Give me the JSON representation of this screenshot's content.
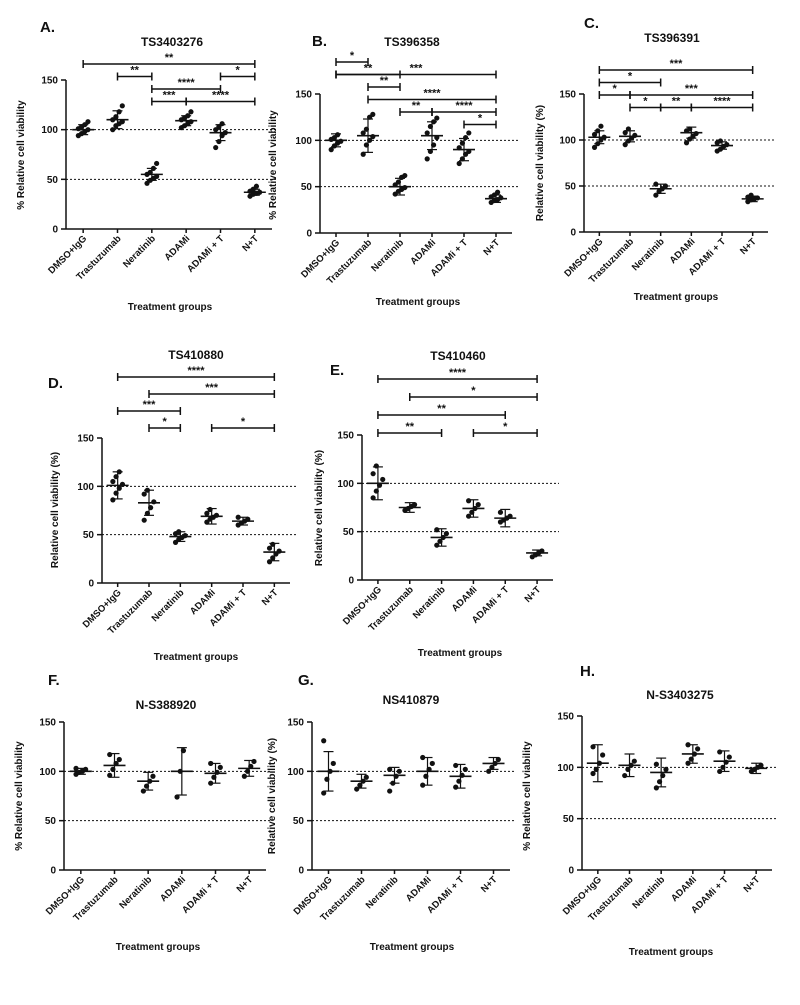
{
  "chart_data": [
    {
      "type": "scatter",
      "panel": "A.",
      "title": "TS3403276",
      "xlabel": "Treatment groups",
      "ylabel": "% Relative cell viability",
      "ylim": [
        0,
        150
      ],
      "yticks": [
        0,
        50,
        100,
        150
      ],
      "reference_lines": [
        50,
        100
      ],
      "categories": [
        "DMSO+IgG",
        "Trastuzumab",
        "Neratinib",
        "ADAMi",
        "ADAMi + T",
        "N+T"
      ],
      "points": [
        [
          94,
          96,
          98,
          100,
          101,
          103,
          105,
          108
        ],
        [
          100,
          104,
          106,
          108,
          110,
          113,
          118,
          124
        ],
        [
          46,
          49,
          51,
          53,
          55,
          57,
          61,
          66
        ],
        [
          102,
          104,
          106,
          108,
          110,
          112,
          114,
          118
        ],
        [
          82,
          88,
          94,
          97,
          100,
          103,
          106
        ],
        [
          33,
          35,
          36,
          37,
          38,
          40,
          43
        ]
      ],
      "centers": [
        100,
        110,
        55,
        109,
        97,
        37
      ],
      "sd": [
        5,
        9,
        6,
        5,
        8,
        3
      ],
      "significance": [
        {
          "from": 0,
          "to": 5,
          "label": "**",
          "level": 0
        },
        {
          "from": 1,
          "to": 2,
          "label": "**",
          "level": 1
        },
        {
          "from": 4,
          "to": 5,
          "label": "*",
          "level": 1
        },
        {
          "from": 2,
          "to": 4,
          "label": "****",
          "level": 2
        },
        {
          "from": 2,
          "to": 3,
          "label": "***",
          "level": 3
        },
        {
          "from": 3,
          "to": 5,
          "label": "****",
          "level": 3
        }
      ]
    },
    {
      "type": "scatter",
      "panel": "B.",
      "title": "TS396358",
      "xlabel": "Treatment groups",
      "ylabel": "% Relative cell viability",
      "ylim": [
        0,
        150
      ],
      "yticks": [
        0,
        50,
        100,
        150
      ],
      "reference_lines": [
        50,
        100
      ],
      "categories": [
        "DMSO+IgG",
        "Trastuzumab",
        "Neratinib",
        "ADAMi",
        "ADAMi + T",
        "N+T"
      ],
      "points": [
        [
          90,
          94,
          97,
          99,
          101,
          103,
          106
        ],
        [
          85,
          95,
          100,
          104,
          108,
          112,
          125,
          128
        ],
        [
          42,
          45,
          47,
          49,
          52,
          55,
          60,
          62
        ],
        [
          80,
          88,
          95,
          103,
          108,
          115,
          120,
          124
        ],
        [
          75,
          80,
          85,
          88,
          92,
          97,
          103,
          108
        ],
        [
          33,
          35,
          36,
          38,
          39,
          41,
          44
        ]
      ],
      "centers": [
        100,
        105,
        50,
        105,
        90,
        37
      ],
      "sd": [
        7,
        18,
        9,
        15,
        12,
        4
      ],
      "significance": [
        {
          "from": 0,
          "to": 1,
          "label": "*",
          "level": 0
        },
        {
          "from": 0,
          "to": 2,
          "label": "**",
          "level": 1
        },
        {
          "from": 0,
          "to": 5,
          "label": "***",
          "level": 1
        },
        {
          "from": 1,
          "to": 2,
          "label": "**",
          "level": 2
        },
        {
          "from": 1,
          "to": 5,
          "label": "****",
          "level": 3
        },
        {
          "from": 2,
          "to": 3,
          "label": "**",
          "level": 4
        },
        {
          "from": 3,
          "to": 5,
          "label": "****",
          "level": 4
        },
        {
          "from": 4,
          "to": 5,
          "label": "*",
          "level": 5
        }
      ]
    },
    {
      "type": "scatter",
      "panel": "C.",
      "title": "TS396391",
      "xlabel": "Treatment groups",
      "ylabel": "Relative cell viability (%)",
      "ylim": [
        0,
        150
      ],
      "yticks": [
        0,
        50,
        100,
        150
      ],
      "reference_lines": [
        50,
        100
      ],
      "categories": [
        "DMSO+IgG",
        "Trastuzumab",
        "Neratinib",
        "ADAMi",
        "ADAMi + T",
        "N+T"
      ],
      "points": [
        [
          92,
          96,
          100,
          103,
          106,
          110,
          115
        ],
        [
          95,
          99,
          102,
          105,
          108,
          112
        ],
        [
          40,
          44,
          47,
          50,
          52
        ],
        [
          97,
          101,
          104,
          107,
          110,
          112
        ],
        [
          88,
          90,
          93,
          95,
          97,
          99
        ],
        [
          33,
          35,
          36,
          37,
          38,
          40
        ]
      ],
      "centers": [
        103,
        104,
        47,
        108,
        94,
        36
      ],
      "sd": [
        7,
        6,
        5,
        6,
        4,
        3
      ],
      "significance": [
        {
          "from": 0,
          "to": 5,
          "label": "***",
          "level": 0
        },
        {
          "from": 0,
          "to": 2,
          "label": "*",
          "level": 1
        },
        {
          "from": 0,
          "to": 1,
          "label": "*",
          "level": 2
        },
        {
          "from": 1,
          "to": 5,
          "label": "***",
          "level": 2
        },
        {
          "from": 1,
          "to": 2,
          "label": "*",
          "level": 3
        },
        {
          "from": 2,
          "to": 3,
          "label": "**",
          "level": 3
        },
        {
          "from": 3,
          "to": 5,
          "label": "****",
          "level": 3
        }
      ]
    },
    {
      "type": "scatter",
      "panel": "D.",
      "title": "TS410880",
      "xlabel": "Treatment groups",
      "ylabel": "Relative cell viability (%)",
      "ylim": [
        0,
        150
      ],
      "yticks": [
        0,
        50,
        100,
        150
      ],
      "reference_lines": [
        50,
        100
      ],
      "categories": [
        "DMSO+IgG",
        "Trastuzumab",
        "Neratinib",
        "ADAMi",
        "ADAMi + T",
        "N+T"
      ],
      "points": [
        [
          86,
          93,
          98,
          102,
          105,
          110,
          115
        ],
        [
          65,
          72,
          78,
          84,
          92,
          96
        ],
        [
          42,
          45,
          47,
          49,
          51,
          53
        ],
        [
          63,
          66,
          68,
          70,
          72,
          76
        ],
        [
          60,
          62,
          64,
          66,
          68
        ],
        [
          22,
          26,
          30,
          33,
          36,
          40
        ]
      ],
      "centers": [
        101,
        83,
        48,
        69,
        64,
        32
      ],
      "sd": [
        14,
        13,
        5,
        8,
        4,
        9
      ],
      "significance": [
        {
          "from": 0,
          "to": 5,
          "label": "****",
          "level": 0
        },
        {
          "from": 1,
          "to": 5,
          "label": "***",
          "level": 1
        },
        {
          "from": 0,
          "to": 2,
          "label": "***",
          "level": 2
        },
        {
          "from": 1,
          "to": 2,
          "label": "*",
          "level": 3
        },
        {
          "from": 3,
          "to": 5,
          "label": "*",
          "level": 3
        }
      ]
    },
    {
      "type": "scatter",
      "panel": "E.",
      "title": "TS410460",
      "xlabel": "Treatment groups",
      "ylabel": "Relative cell viability (%)",
      "ylim": [
        0,
        150
      ],
      "yticks": [
        0,
        50,
        100,
        150
      ],
      "reference_lines": [
        50,
        100
      ],
      "categories": [
        "DMSO+IgG",
        "Trastuzumab",
        "Neratinib",
        "ADAMi",
        "ADAMi + T",
        "N+T"
      ],
      "points": [
        [
          85,
          92,
          98,
          104,
          110,
          118
        ],
        [
          72,
          74,
          76,
          78
        ],
        [
          36,
          40,
          44,
          48,
          52
        ],
        [
          66,
          70,
          74,
          78,
          82
        ],
        [
          60,
          62,
          64,
          66,
          70
        ],
        [
          24,
          26,
          28,
          30
        ]
      ],
      "centers": [
        100,
        75,
        44,
        74,
        64,
        28
      ],
      "sd": [
        17,
        5,
        9,
        9,
        9,
        3
      ],
      "significance": [
        {
          "from": 0,
          "to": 5,
          "label": "****",
          "level": 0
        },
        {
          "from": 1,
          "to": 5,
          "label": "*",
          "level": 1
        },
        {
          "from": 0,
          "to": 4,
          "label": "**",
          "level": 2
        },
        {
          "from": 0,
          "to": 2,
          "label": "**",
          "level": 3
        },
        {
          "from": 3,
          "to": 5,
          "label": "*",
          "level": 3
        }
      ]
    },
    {
      "type": "scatter",
      "panel": "F.",
      "title": "N-S388920",
      "xlabel": "Treatment groups",
      "ylabel": "% Relative cell viability",
      "ylim": [
        0,
        150
      ],
      "yticks": [
        0,
        50,
        100,
        150
      ],
      "reference_lines": [
        50,
        100
      ],
      "categories": [
        "DMSO+IgG",
        "Trastuzumab",
        "Neratinib",
        "ADAMi",
        "ADAMi + T",
        "N+T"
      ],
      "points": [
        [
          97,
          99,
          100,
          102,
          103
        ],
        [
          96,
          102,
          108,
          112,
          117
        ],
        [
          80,
          85,
          90,
          95
        ],
        [
          74,
          100,
          121
        ],
        [
          88,
          94,
          99,
          104,
          108
        ],
        [
          95,
          100,
          105,
          110
        ]
      ],
      "centers": [
        100,
        106,
        90,
        100,
        98,
        103
      ],
      "sd": [
        3,
        12,
        9,
        24,
        10,
        8
      ],
      "significance": []
    },
    {
      "type": "scatter",
      "panel": "G.",
      "title": "NS410879",
      "xlabel": "Treatment groups",
      "ylabel": "Relative cell viability (%)",
      "ylim": [
        0,
        150
      ],
      "yticks": [
        0,
        50,
        100,
        150
      ],
      "reference_lines": [
        50,
        100
      ],
      "categories": [
        "DMSO+IgG",
        "Trastuzumab",
        "Neratinib",
        "ADAMi",
        "ADAMi + T",
        "N+T"
      ],
      "points": [
        [
          78,
          92,
          100,
          108,
          131
        ],
        [
          82,
          86,
          90,
          94
        ],
        [
          80,
          88,
          95,
          100,
          102
        ],
        [
          86,
          95,
          102,
          108,
          114
        ],
        [
          84,
          90,
          96,
          102,
          106
        ],
        [
          100,
          104,
          108,
          112
        ]
      ],
      "centers": [
        100,
        90,
        96,
        100,
        95,
        108
      ],
      "sd": [
        20,
        7,
        8,
        14,
        12,
        6
      ],
      "significance": []
    },
    {
      "type": "scatter",
      "panel": "H.",
      "title": "N-S3403275",
      "xlabel": "Treatment groups",
      "ylabel": "% Relative cell viability",
      "ylim": [
        0,
        150
      ],
      "yticks": [
        0,
        50,
        100,
        150
      ],
      "reference_lines": [
        50,
        100
      ],
      "categories": [
        "DMSO+IgG",
        "Trastuzumab",
        "Neratinib",
        "ADAMi",
        "ADAMi + T",
        "N+T"
      ],
      "points": [
        [
          94,
          98,
          104,
          112,
          120
        ],
        [
          92,
          98,
          102,
          106
        ],
        [
          80,
          86,
          92,
          98,
          103
        ],
        [
          104,
          108,
          113,
          118,
          122
        ],
        [
          96,
          100,
          105,
          110,
          115
        ],
        [
          96,
          98,
          100,
          102
        ]
      ],
      "centers": [
        104,
        102,
        95,
        113,
        106,
        99
      ],
      "sd": [
        18,
        11,
        14,
        9,
        10,
        5
      ],
      "significance": []
    }
  ]
}
